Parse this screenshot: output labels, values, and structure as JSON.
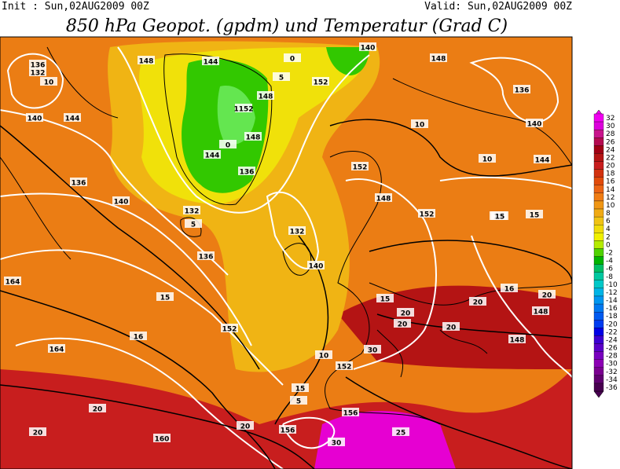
{
  "header": {
    "init": "Init : Sun,02AUG2009 00Z",
    "valid": "Valid: Sun,02AUG2009 00Z",
    "title": "850 hPa Geopot. (gpdm) und Temperatur (Grad C)"
  },
  "legend": {
    "levels": [
      32,
      30,
      28,
      26,
      24,
      22,
      20,
      18,
      16,
      14,
      12,
      10,
      8,
      6,
      4,
      2,
      0,
      -2,
      -4,
      -6,
      -8,
      -10,
      -12,
      -14,
      -16,
      -18,
      -20,
      -22,
      -24,
      -26,
      -28,
      -30,
      -32,
      -34,
      -36
    ],
    "colors": [
      "#f000f0",
      "#dc00dc",
      "#c8148c",
      "#b40a50",
      "#a00014",
      "#b41414",
      "#c81e1e",
      "#d2320f",
      "#e14b0a",
      "#eb6414",
      "#f07d14",
      "#f09614",
      "#f0aa14",
      "#f0c314",
      "#f0dc0a",
      "#f0f000",
      "#b4eb00",
      "#50d200",
      "#00b400",
      "#00be64",
      "#00c8a0",
      "#00c8c8",
      "#00b4e6",
      "#0096f0",
      "#0078f0",
      "#005af0",
      "#003cf0",
      "#0000e6",
      "#3c00d2",
      "#5a00c8",
      "#7800be",
      "#8c00b4",
      "#7a0090",
      "#600070",
      "#480050"
    ]
  },
  "contour_labels": [
    "136",
    "132",
    "10",
    "140",
    "144",
    "148",
    "144",
    "5",
    "0",
    "1152",
    "148",
    "152",
    "140",
    "148",
    "136",
    "140",
    "144",
    "0",
    "136",
    "132",
    "5",
    "136",
    "132",
    "140",
    "152",
    "148",
    "10",
    "15",
    "10",
    "144",
    "148",
    "152",
    "15",
    "15",
    "16",
    "164",
    "15",
    "16",
    "164",
    "152",
    "152",
    "156",
    "156",
    "160",
    "20",
    "20",
    "20",
    "25",
    "30",
    "148",
    "148",
    "20",
    "20",
    "20",
    "30",
    "136",
    "140",
    "20",
    "10",
    "15",
    "5",
    "15",
    "20"
  ]
}
